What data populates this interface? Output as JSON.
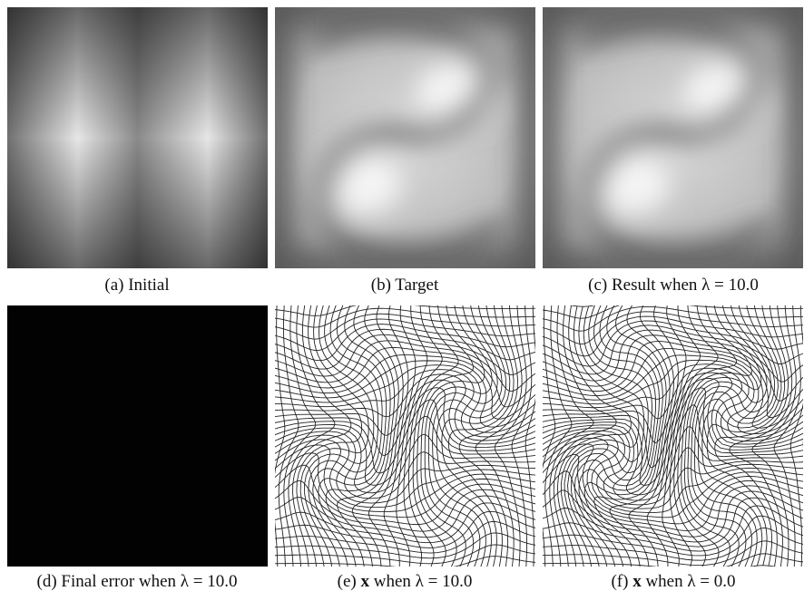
{
  "figure": {
    "panels": [
      {
        "caption": [
          "(a) Initial"
        ]
      },
      {
        "caption": [
          "(b) Target"
        ]
      },
      {
        "caption": [
          "(c) Result when λ = 10.0"
        ]
      },
      {
        "caption": [
          "(d) Final error when λ = 10.0"
        ]
      },
      {
        "caption": [
          "(e) ",
          "x",
          " when λ = 10.0"
        ]
      },
      {
        "caption": [
          "(f) ",
          "x",
          " when λ = 0.0"
        ]
      }
    ]
  }
}
